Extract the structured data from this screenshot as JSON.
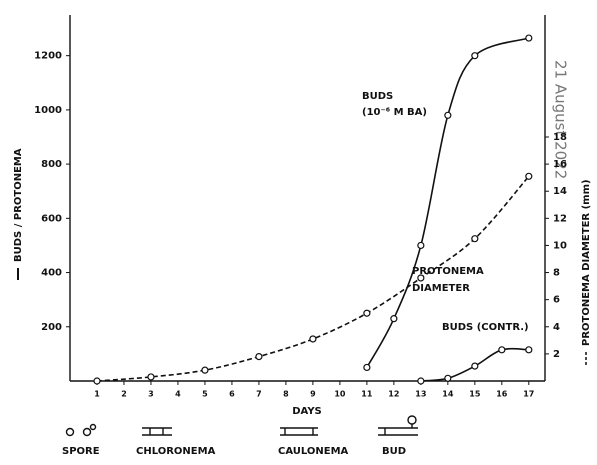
{
  "chart_data": {
    "type": "line",
    "x_label": "DAYS",
    "y_label": "BUDS / PROTONEMA",
    "y2_label": "PROTONEMA DIAMETER (mm)",
    "watermark": "21 August 2022",
    "annotations": [
      "BUDS",
      "(10⁻⁶ M BA)",
      "PROTONEMA",
      "DIAMETER",
      "BUDS (CONTR.)"
    ],
    "legend_items": [
      "SPORE",
      "CHLORONEMA",
      "CAULONEMA",
      "BUD"
    ],
    "xlim": [
      0,
      17.6
    ],
    "xticks": [
      1,
      2,
      3,
      4,
      5,
      6,
      7,
      8,
      9,
      10,
      11,
      12,
      13,
      14,
      15,
      16,
      17
    ],
    "ylim": [
      0,
      1350
    ],
    "yticks": [
      200,
      400,
      600,
      800,
      1000,
      1200
    ],
    "y2lim": [
      0,
      27
    ],
    "y2ticks": [
      2,
      4,
      6,
      8,
      10,
      12,
      14,
      16,
      18
    ],
    "series": [
      {
        "color": "#111111",
        "dash": false,
        "marker": "circle",
        "x": [
          11,
          12,
          13,
          14,
          15,
          17
        ],
        "values": [
          50,
          230,
          500,
          980,
          1200,
          1265
        ]
      },
      {
        "color": "#111111",
        "dash": true,
        "marker": "circle",
        "axis": "y2",
        "x": [
          1,
          3,
          5,
          7,
          9,
          11,
          13,
          15,
          17
        ],
        "values": [
          0,
          0.3,
          0.8,
          1.8,
          3.1,
          5.0,
          7.6,
          10.5,
          15.1
        ]
      },
      {
        "color": "#111111",
        "dash": false,
        "marker": "circle",
        "x": [
          13,
          14,
          15,
          16,
          17
        ],
        "values": [
          0,
          10,
          55,
          115,
          115
        ]
      }
    ]
  }
}
